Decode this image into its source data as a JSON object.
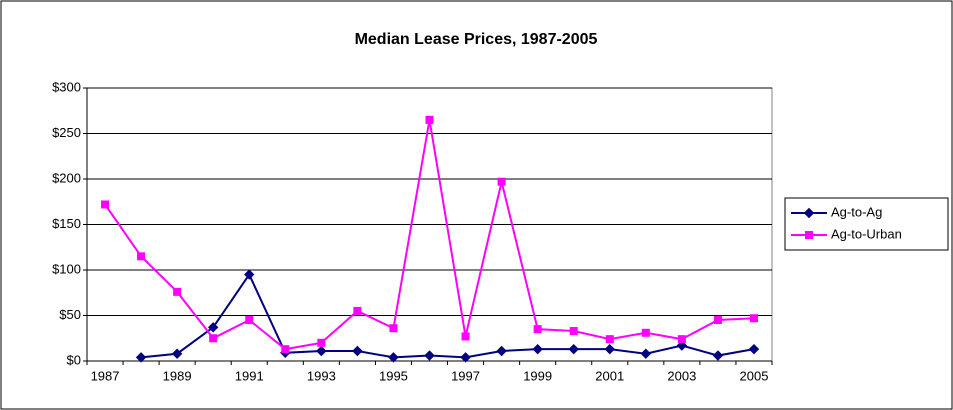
{
  "chart_data": {
    "type": "line",
    "title": "Median Lease Prices, 1987-2005",
    "categories": [
      "1987",
      null,
      "1989",
      null,
      "1991",
      null,
      "1993",
      null,
      "1995",
      null,
      "1997",
      null,
      "1999",
      null,
      "2001",
      null,
      "2003",
      null,
      "2005"
    ],
    "series": [
      {
        "name": "Ag-to-Ag",
        "color": "#000080",
        "marker": "diamond",
        "values": [
          null,
          4,
          8,
          37,
          95,
          9,
          11,
          11,
          4,
          6,
          4,
          11,
          13,
          13,
          13,
          8,
          17,
          6,
          13
        ]
      },
      {
        "name": "Ag-to-Urban",
        "color": "#ff00ff",
        "marker": "square",
        "values": [
          172,
          115,
          76,
          25,
          45,
          13,
          20,
          55,
          36,
          265,
          27,
          197,
          35,
          33,
          24,
          31,
          24,
          45,
          47
        ]
      }
    ],
    "ylim": [
      0,
      300
    ],
    "yticks": [
      {
        "value": 0,
        "label": "$0"
      },
      {
        "value": 50,
        "label": "$50"
      },
      {
        "value": 100,
        "label": "$100"
      },
      {
        "value": 150,
        "label": "$150"
      },
      {
        "value": 200,
        "label": "$200"
      },
      {
        "value": 250,
        "label": "$250"
      },
      {
        "value": 300,
        "label": "$300"
      }
    ],
    "grid": true,
    "legend": "right"
  }
}
